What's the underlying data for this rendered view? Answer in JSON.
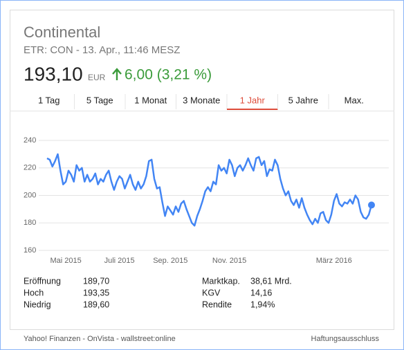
{
  "header": {
    "title": "Continental",
    "subtitle": "ETR: CON - 13. Apr., 11:46 MESZ"
  },
  "quote": {
    "price": "193,10",
    "currency": "EUR",
    "change": "6,00 (3,21 %)"
  },
  "tabs": {
    "items": [
      "1 Tag",
      "5 Tage",
      "1 Monat",
      "3 Monate",
      "1 Jahr",
      "5 Jahre",
      "Max."
    ],
    "selected": 4
  },
  "chart_data": {
    "type": "line",
    "color": "#4285f4",
    "grid": true,
    "ylim": [
      160,
      240
    ],
    "yticks": [
      160,
      180,
      200,
      220,
      240
    ],
    "categories": [
      null,
      null,
      null,
      null,
      null,
      null,
      null,
      "Mai 2015",
      null,
      null,
      null,
      null,
      null,
      null,
      null,
      null,
      null,
      null,
      null,
      null,
      null,
      null,
      null,
      null,
      null,
      null,
      null,
      "Juli 2015",
      null,
      null,
      null,
      null,
      null,
      null,
      null,
      null,
      null,
      null,
      null,
      null,
      null,
      null,
      null,
      null,
      null,
      null,
      "Sep. 2015",
      null,
      null,
      null,
      null,
      null,
      null,
      null,
      null,
      null,
      null,
      null,
      null,
      null,
      null,
      null,
      null,
      null,
      null,
      null,
      null,
      null,
      "Nov. 2015",
      null,
      null,
      null,
      null,
      null,
      null,
      null,
      null,
      null,
      null,
      null,
      null,
      null,
      null,
      null,
      null,
      null,
      null,
      null,
      null,
      null,
      null,
      null,
      null,
      null,
      null,
      null,
      null,
      null,
      null,
      null,
      null,
      null,
      null,
      null,
      null,
      null,
      null,
      "März 2016",
      null,
      null,
      null,
      null,
      null,
      null,
      null,
      null,
      null,
      null,
      null,
      null,
      null,
      null
    ],
    "values": [
      227,
      226,
      221,
      225,
      230,
      218,
      208,
      210,
      218,
      215,
      210,
      222,
      218,
      220,
      210,
      215,
      210,
      212,
      216,
      208,
      212,
      210,
      215,
      218,
      210,
      204,
      210,
      214,
      212,
      205,
      210,
      215,
      208,
      204,
      210,
      205,
      208,
      214,
      225,
      226,
      212,
      205,
      206,
      195,
      185,
      192,
      189,
      186,
      192,
      188,
      194,
      196,
      190,
      185,
      180,
      178,
      185,
      190,
      196,
      203,
      206,
      203,
      210,
      208,
      222,
      218,
      220,
      216,
      226,
      222,
      214,
      220,
      222,
      218,
      222,
      227,
      222,
      218,
      227,
      228,
      222,
      225,
      214,
      219,
      218,
      226,
      222,
      212,
      205,
      200,
      203,
      196,
      193,
      197,
      191,
      198,
      191,
      186,
      182,
      179,
      183,
      180,
      187,
      188,
      182,
      180,
      186,
      196,
      201,
      194,
      192,
      195,
      194,
      197,
      194,
      200,
      197,
      188,
      184,
      183,
      186,
      193
    ]
  },
  "stats": {
    "left": [
      [
        "Eröffnung",
        "189,70"
      ],
      [
        "Hoch",
        "193,35"
      ],
      [
        "Niedrig",
        "189,60"
      ]
    ],
    "right": [
      [
        "Marktkap.",
        "38,61 Mrd."
      ],
      [
        "KGV",
        "14,16"
      ],
      [
        "Rendite",
        "1,94%"
      ]
    ]
  },
  "footer": {
    "sources": "Yahoo! Finanzen - OnVista - wallstreet:online",
    "disclaimer": "Haftungsausschluss"
  }
}
